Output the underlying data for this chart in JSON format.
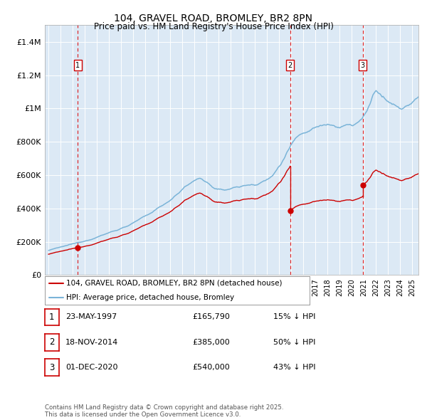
{
  "title1": "104, GRAVEL ROAD, BROMLEY, BR2 8PN",
  "title2": "Price paid vs. HM Land Registry's House Price Index (HPI)",
  "ylabel_ticks": [
    "£0",
    "£200K",
    "£400K",
    "£600K",
    "£800K",
    "£1M",
    "£1.2M",
    "£1.4M"
  ],
  "ytick_values": [
    0,
    200000,
    400000,
    600000,
    800000,
    1000000,
    1200000,
    1400000
  ],
  "ylim": [
    0,
    1500000
  ],
  "xlim_start": 1994.7,
  "xlim_end": 2025.5,
  "hpi_color": "#7ab4d8",
  "paid_color": "#cc0000",
  "background_color": "#dce9f5",
  "grid_color": "#ffffff",
  "sale1_year": 1997.39,
  "sale1_price": 165790,
  "sale2_year": 2014.88,
  "sale2_price": 385000,
  "sale3_year": 2020.92,
  "sale3_price": 540000,
  "legend_paid": "104, GRAVEL ROAD, BROMLEY, BR2 8PN (detached house)",
  "legend_hpi": "HPI: Average price, detached house, Bromley",
  "table_entries": [
    {
      "num": "1",
      "date": "23-MAY-1997",
      "price": "£165,790",
      "pct": "15% ↓ HPI"
    },
    {
      "num": "2",
      "date": "18-NOV-2014",
      "price": "£385,000",
      "pct": "50% ↓ HPI"
    },
    {
      "num": "3",
      "date": "01-DEC-2020",
      "price": "£540,000",
      "pct": "43% ↓ HPI"
    }
  ],
  "footnote": "Contains HM Land Registry data © Crown copyright and database right 2025.\nThis data is licensed under the Open Government Licence v3.0."
}
